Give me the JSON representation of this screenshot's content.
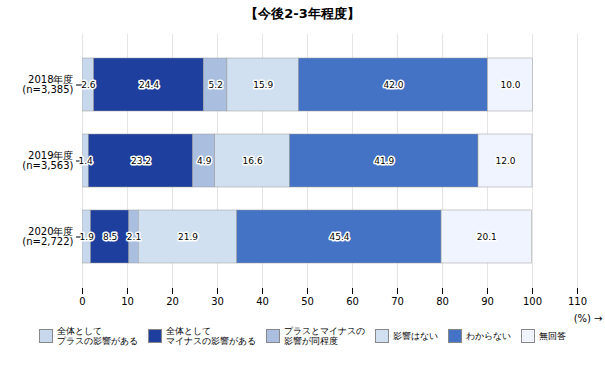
{
  "chart_data": {
    "type": "bar",
    "title": "【今後2-3年程度】",
    "orientation": "horizontal",
    "stacked": true,
    "categories": [
      "2018年度\n(n=3,385)",
      "2019年度\n(n=3,563)",
      "2020年度\n(n=2,722)"
    ],
    "series": [
      {
        "name": "全体として\nプラスの影響がある",
        "color": "#c8d8ec",
        "values": [
          2.6,
          1.4,
          1.9
        ],
        "value_labels": [
          "2.6",
          "1.4",
          "1.9"
        ]
      },
      {
        "name": "全体として\nマイナスの影響がある",
        "color": "#1e3f9e",
        "values": [
          24.4,
          23.2,
          8.5
        ],
        "value_labels": [
          "24.4",
          "23.2",
          "8.5"
        ]
      },
      {
        "name": "プラスとマイナスの\n影響が同程度",
        "color": "#aabfe0",
        "values": [
          5.2,
          4.9,
          2.1
        ],
        "value_labels": [
          "5.2",
          "4.9",
          "2.1"
        ]
      },
      {
        "name": "影響はない",
        "color": "#d0e0f0",
        "values": [
          15.9,
          16.6,
          21.9
        ],
        "value_labels": [
          "15.9",
          "16.6",
          "21.9"
        ]
      },
      {
        "name": "わからない",
        "color": "#4472c4",
        "values": [
          42.0,
          41.9,
          45.4
        ],
        "value_labels": [
          "42.0",
          "41.9",
          "45.4"
        ]
      },
      {
        "name": "無回答",
        "color": "#f0f4ff",
        "values": [
          10.0,
          12.0,
          20.1
        ],
        "value_labels": [
          "10.0",
          "12.0",
          "20.1"
        ]
      }
    ],
    "xlim": [
      0,
      110
    ],
    "xticks": [
      0,
      10,
      20,
      30,
      40,
      50,
      60,
      70,
      80,
      90,
      100,
      110
    ],
    "xlabel": "(%)",
    "grid": true,
    "legend": "bottom",
    "data_labels": true
  }
}
